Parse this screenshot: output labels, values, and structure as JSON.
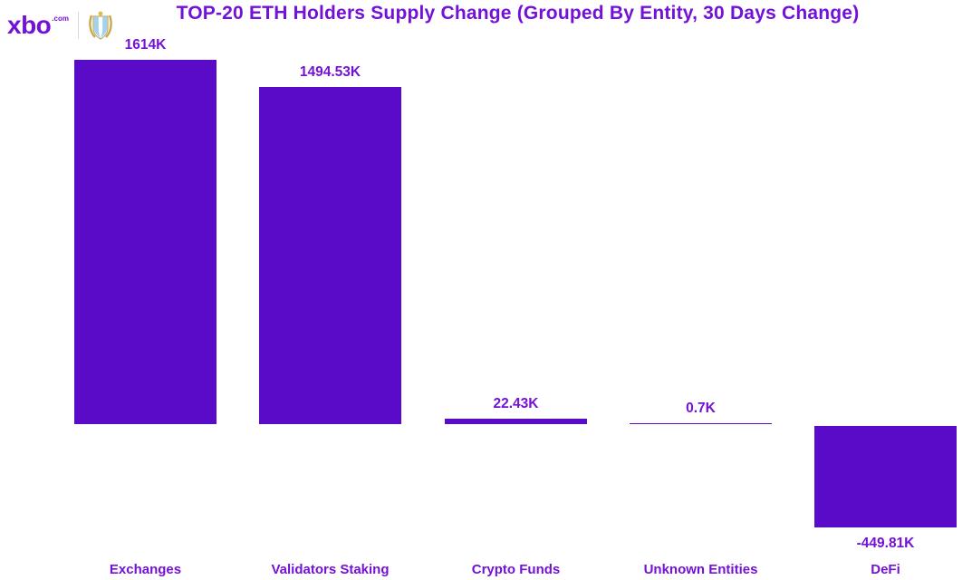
{
  "header": {
    "logo_text": "xbo",
    "logo_suffix": ".com",
    "crest_icon": "afa-crest-icon"
  },
  "chart_data": {
    "type": "bar",
    "title": "TOP-20 ETH Holders Supply Change (Grouped By Entity, 30 Days Change)",
    "categories": [
      "Exchanges",
      "Validators Staking",
      "Crypto Funds",
      "Unknown Entities",
      "DeFi"
    ],
    "values": [
      1614,
      1494.53,
      22.43,
      0.7,
      -449.81
    ],
    "value_labels": [
      "1614K",
      "1494.53K",
      "22.43K",
      "0.7K",
      "-449.81K"
    ],
    "unit": "K",
    "ylim": [
      -600,
      1700
    ],
    "grid": false,
    "legend": false,
    "xlabel": "",
    "ylabel": "",
    "bar_color": "#5a0bc7",
    "text_color": "#7411d6"
  }
}
